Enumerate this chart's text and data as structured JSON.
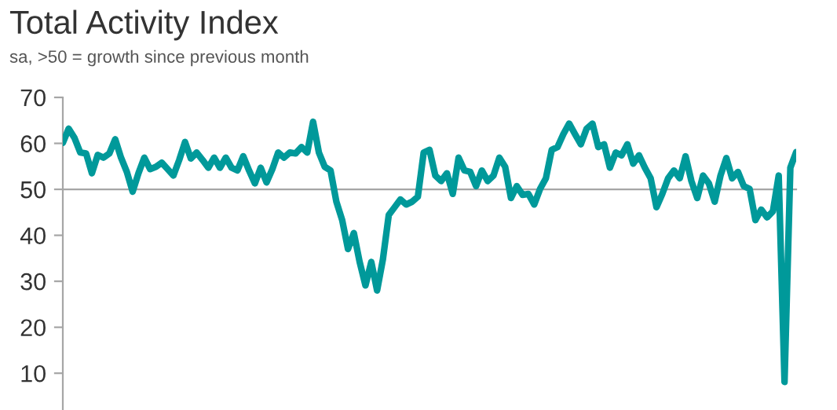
{
  "chart_data": {
    "type": "line",
    "title": "Total Activity Index",
    "subtitle": "sa, >50 = growth since previous month",
    "categories": [
      null,
      null,
      null,
      null,
      null,
      null,
      null,
      null,
      null,
      null,
      null,
      null,
      null,
      null,
      null,
      null,
      null,
      null,
      null,
      null,
      null,
      null,
      null,
      null,
      null,
      null,
      null,
      null,
      null,
      null,
      null,
      null,
      null,
      null,
      null,
      null,
      null,
      null,
      null,
      null,
      null,
      null,
      null,
      null,
      null,
      null,
      null,
      null,
      null,
      null,
      null,
      null,
      null,
      null,
      null,
      null,
      null,
      null,
      null,
      null,
      null,
      null,
      null,
      null,
      null,
      null,
      null,
      null,
      null,
      null,
      null,
      null,
      null,
      null,
      null,
      null,
      null,
      null,
      null,
      null,
      null,
      null,
      null,
      null,
      null,
      null,
      null,
      null,
      null,
      null,
      null,
      null,
      null,
      null,
      null,
      null,
      null,
      null,
      null,
      null,
      null,
      null,
      null,
      null,
      null,
      null,
      null,
      null,
      null,
      null,
      null,
      null,
      null,
      null,
      null,
      null,
      null,
      null,
      null,
      null,
      null,
      null,
      null,
      null,
      null,
      null,
      null
    ],
    "series": [
      {
        "color": "#00999a",
        "values": [
          60.1,
          63.2,
          61.2,
          58,
          57.8,
          53.5,
          57.5,
          56.9,
          57.8,
          60.9,
          56.9,
          53.8,
          49.5,
          53.5,
          56.9,
          54.4,
          54.9,
          55.8,
          54.4,
          53,
          56.4,
          60.3,
          56.7,
          58,
          56.4,
          54.7,
          56.9,
          54.7,
          56.9,
          54.7,
          54.1,
          57.2,
          54.1,
          51.3,
          54.7,
          51.5,
          54.4,
          58,
          56.9,
          58,
          57.8,
          59.2,
          58,
          64.7,
          58,
          54.9,
          54.1,
          47.3,
          43.3,
          37,
          40.5,
          34.2,
          29.1,
          34.2,
          28,
          34.8,
          44.4,
          46.1,
          47.8,
          46.7,
          47.3,
          48.4,
          58,
          58.6,
          53,
          51.8,
          53.5,
          49,
          56.9,
          54.1,
          53.8,
          50.7,
          54.1,
          51.8,
          53,
          56.9,
          54.9,
          48.1,
          50.7,
          48.8,
          49,
          46.7,
          50.1,
          52.4,
          58.6,
          59.2,
          62,
          64.3,
          62,
          59.8,
          63.2,
          64.3,
          59.2,
          59.8,
          54.7,
          58,
          57.4,
          59.8,
          55.6,
          57.4,
          54.7,
          52.4,
          46.1,
          49,
          52.4,
          54.1,
          52.4,
          57.2,
          51.8,
          48.1,
          53,
          51.3,
          47.3,
          53,
          56.8,
          52.4,
          53.8,
          50.7,
          50.1,
          43.3,
          45.6,
          43.9,
          45.2,
          53,
          8.1,
          54.7,
          58.1
        ]
      }
    ],
    "ylim": [
      2,
      70
    ],
    "yticks": [
      10,
      20,
      30,
      40,
      50,
      60,
      70
    ],
    "ref_lines": [
      {
        "axis": "y",
        "value": 50,
        "color": "#a6a6a6"
      }
    ],
    "tick_labels": "y",
    "grid": false,
    "legend": false,
    "marker": "none",
    "line_style": "solid"
  }
}
